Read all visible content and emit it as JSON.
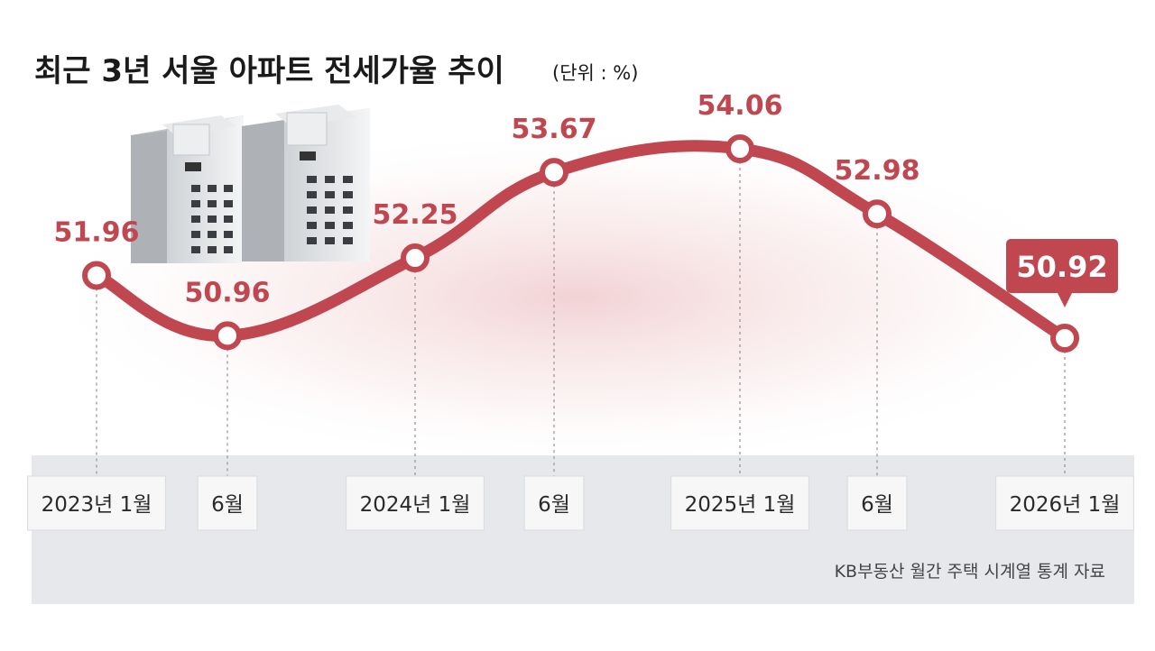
{
  "title": "최근 3년 서울 아파트 전세가율 추이",
  "unit": "(단위 : %)",
  "source": "KB부동산 월간 주택 시계열 통계 자료",
  "colors": {
    "line": "#c0474f",
    "label": "#c0474f",
    "callout": "#c0474f",
    "axis_band": "#e6e8ec",
    "tick_box": "#f7f7f8"
  },
  "chart_data": {
    "type": "line",
    "title": "최근 3년 서울 아파트 전세가율 추이",
    "xlabel": "",
    "ylabel": "",
    "ylim": [
      50.5,
      54.5
    ],
    "grid": false,
    "legend": "none",
    "categories": [
      "2023년 1월",
      "6월",
      "2024년 1월",
      "6월",
      "2025년 1월",
      "6월",
      "2026년 1월"
    ],
    "values": [
      51.96,
      50.96,
      52.25,
      53.67,
      54.06,
      52.98,
      50.92
    ],
    "labels": [
      "51.96",
      "50.96",
      "52.25",
      "53.67",
      "54.06",
      "52.98",
      "50.92"
    ],
    "highlight": "50.92"
  }
}
